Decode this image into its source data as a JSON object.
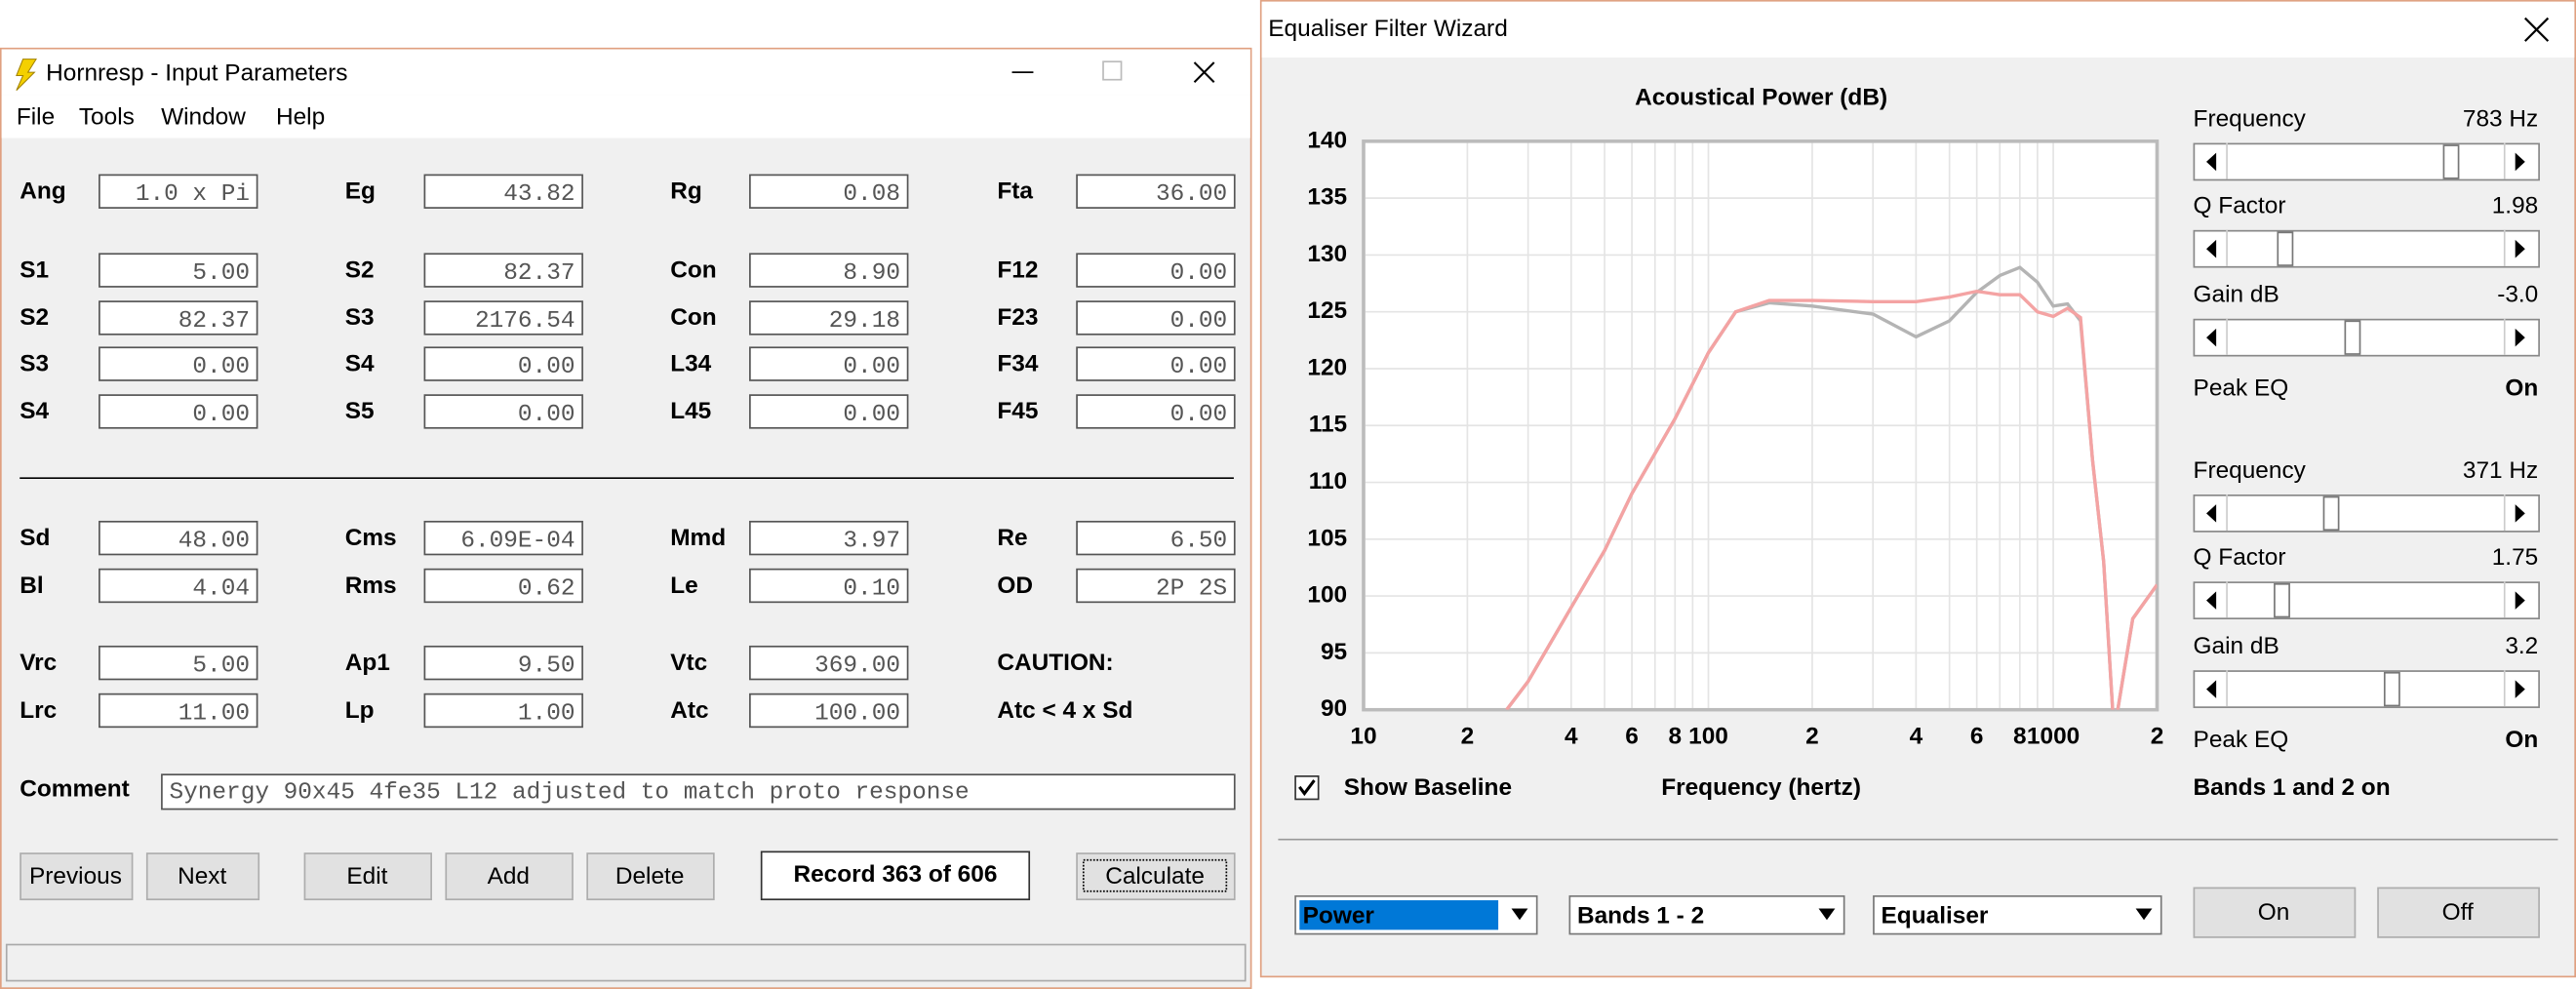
{
  "left_window": {
    "title": "Hornresp - Input Parameters",
    "menu": [
      "File",
      "Tools",
      "Window",
      "Help"
    ],
    "rows": [
      [
        {
          "label": "Ang",
          "value": "1.0 x Pi"
        },
        {
          "label": "Eg",
          "value": "43.82"
        },
        {
          "label": "Rg",
          "value": "0.08"
        },
        {
          "label": "Fta",
          "value": "36.00"
        }
      ],
      [
        {
          "label": "S1",
          "value": "5.00"
        },
        {
          "label": "S2",
          "value": "82.37"
        },
        {
          "label": "Con",
          "value": "8.90"
        },
        {
          "label": "F12",
          "value": "0.00"
        }
      ],
      [
        {
          "label": "S2",
          "value": "82.37"
        },
        {
          "label": "S3",
          "value": "2176.54"
        },
        {
          "label": "Con",
          "value": "29.18"
        },
        {
          "label": "F23",
          "value": "0.00"
        }
      ],
      [
        {
          "label": "S3",
          "value": "0.00"
        },
        {
          "label": "S4",
          "value": "0.00"
        },
        {
          "label": "L34",
          "value": "0.00"
        },
        {
          "label": "F34",
          "value": "0.00"
        }
      ],
      [
        {
          "label": "S4",
          "value": "0.00"
        },
        {
          "label": "S5",
          "value": "0.00"
        },
        {
          "label": "L45",
          "value": "0.00"
        },
        {
          "label": "F45",
          "value": "0.00"
        }
      ],
      [
        {
          "label": "Sd",
          "value": "48.00"
        },
        {
          "label": "Cms",
          "value": "6.09E-04"
        },
        {
          "label": "Mmd",
          "value": "3.97"
        },
        {
          "label": "Re",
          "value": "6.50"
        }
      ],
      [
        {
          "label": "Bl",
          "value": "4.04"
        },
        {
          "label": "Rms",
          "value": "0.62"
        },
        {
          "label": "Le",
          "value": "0.10"
        },
        {
          "label": "OD",
          "value": "2P 2S",
          "color": "#e8141c"
        }
      ],
      [
        {
          "label": "Vrc",
          "value": "5.00"
        },
        {
          "label": "Ap1",
          "value": "9.50"
        },
        {
          "label": "Vtc",
          "value": "369.00"
        },
        {
          "label": "CAUTION:",
          "color": "#e8141c"
        }
      ],
      [
        {
          "label": "Lrc",
          "value": "11.00"
        },
        {
          "label": "Lp",
          "value": "1.00"
        },
        {
          "label": "Atc",
          "value": "100.00"
        },
        {
          "label": "Atc < 4 x Sd",
          "color": "#e8141c"
        }
      ]
    ],
    "comment": {
      "label": "Comment",
      "value": "Synergy 90x45 4fe35  L12 adjusted to match proto response"
    },
    "buttons": [
      "Previous",
      "Next",
      "Edit",
      "Add",
      "Delete"
    ],
    "record": "Record 363 of 606",
    "calculate": "Calculate"
  },
  "right_window": {
    "title": "Equaliser Filter Wizard",
    "chart_data": {
      "type": "line",
      "title": "Acoustical Power (dB)",
      "x_label": "Frequency (hertz)",
      "x_scale": "log",
      "x": [
        26,
        30,
        40,
        50,
        60,
        80,
        100,
        120,
        150,
        200,
        300,
        400,
        500,
        600,
        700,
        800,
        900,
        1000,
        1100,
        1200,
        1300,
        1400,
        1500,
        1700,
        2000
      ],
      "series": [
        {
          "name": "Baseline",
          "color": "#b4b4b4",
          "values": [
            90,
            92.5,
            99,
            104,
            109,
            115.6,
            121.4,
            125,
            125.8,
            125.5,
            124.8,
            122.8,
            124.2,
            126.7,
            128.2,
            128.9,
            127.6,
            125.5,
            125.7,
            124.2,
            112,
            103,
            88,
            98,
            101
          ]
        },
        {
          "name": "Equalised",
          "color": "#f4a3a3",
          "values": [
            90,
            92.5,
            99,
            104,
            109,
            115.6,
            121.4,
            125,
            126,
            126,
            125.9,
            125.9,
            126.3,
            126.8,
            126.5,
            126.5,
            125,
            124.6,
            125.3,
            124.5,
            112,
            103,
            88,
            98,
            101
          ]
        }
      ],
      "xlim": [
        10,
        2000
      ],
      "xticks": [
        10,
        {
          "value": 20,
          "label": "2"
        },
        {
          "value": 40,
          "label": "4"
        },
        {
          "value": 60,
          "label": "6"
        },
        {
          "value": 80,
          "label": "8"
        },
        100,
        {
          "value": 200,
          "label": "2"
        },
        {
          "value": 400,
          "label": "4"
        },
        {
          "value": 600,
          "label": "6"
        },
        {
          "value": 800,
          "label": "8"
        },
        1000,
        {
          "value": 2000,
          "label": "2"
        }
      ],
      "xgrid": [
        20,
        30,
        40,
        50,
        60,
        70,
        80,
        90,
        100,
        200,
        300,
        400,
        500,
        600,
        700,
        800,
        900,
        1000
      ],
      "ylim": [
        90,
        140
      ],
      "yticks": [
        90,
        95,
        100,
        105,
        110,
        115,
        120,
        125,
        130,
        135,
        140
      ],
      "grid": true
    },
    "bands": [
      {
        "frequency_label": "Frequency",
        "frequency": "783 Hz",
        "q_label": "Q Factor",
        "q": "1.98",
        "gain_label": "Gain  dB",
        "gain": "-3.0",
        "peak_label": "Peak EQ",
        "peak": "On"
      },
      {
        "frequency_label": "Frequency",
        "frequency": "371 Hz",
        "q_label": "Q Factor",
        "q": "1.75",
        "gain_label": "Gain  dB",
        "gain": "3.2",
        "peak_label": "Peak EQ",
        "peak": "On"
      }
    ],
    "show_baseline": {
      "label": "Show Baseline",
      "checked": true
    },
    "status": "Bands 1 and 2 on",
    "dropdowns": [
      "Power",
      "Bands 1 - 2",
      "Equaliser"
    ],
    "buttons": [
      "On",
      "Off"
    ]
  }
}
